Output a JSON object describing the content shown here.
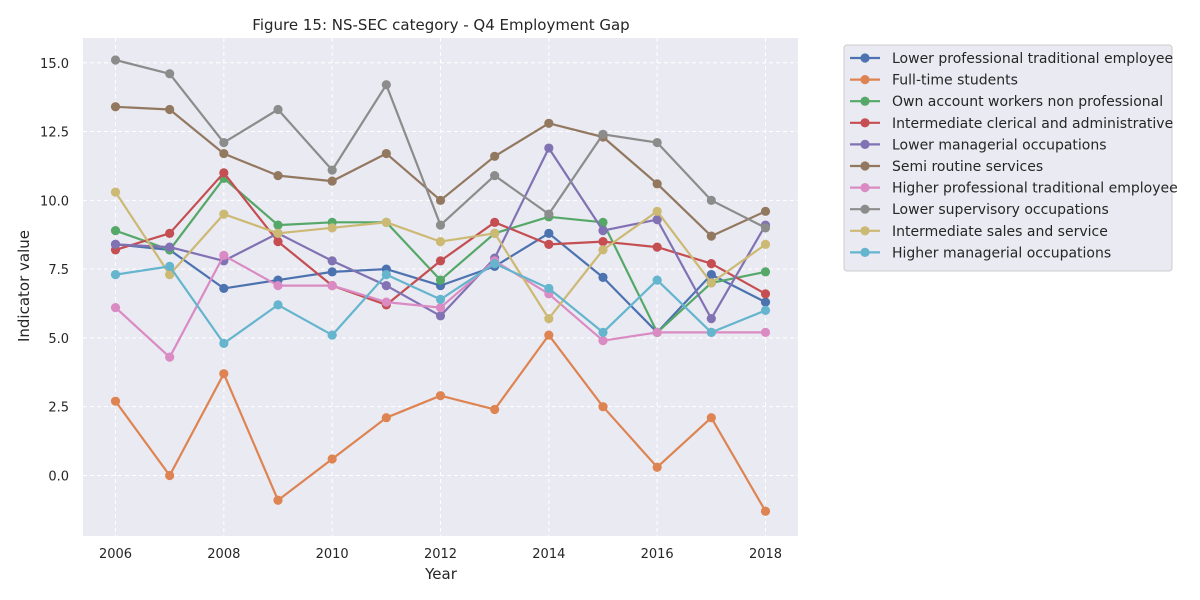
{
  "chart_data": {
    "type": "line",
    "title": "Figure 15: NS-SEC category - Q4 Employment Gap",
    "xlabel": "Year",
    "ylabel": "Indicator value",
    "x": [
      2006,
      2007,
      2008,
      2009,
      2010,
      2011,
      2012,
      2013,
      2014,
      2015,
      2016,
      2017,
      2018
    ],
    "xlim": [
      2005.4,
      2018.6
    ],
    "ylim": [
      -2.2,
      15.9
    ],
    "xticks": [
      2006,
      2008,
      2010,
      2012,
      2014,
      2016,
      2018
    ],
    "yticks": [
      "0.0",
      "2.5",
      "5.0",
      "7.5",
      "10.0",
      "12.5",
      "15.0"
    ],
    "grid": true,
    "legend_position": "outside-top-right",
    "series": [
      {
        "name": "Lower professional traditional employee",
        "color": "#4c72b0",
        "values": [
          8.4,
          8.2,
          6.8,
          7.1,
          7.4,
          7.5,
          6.9,
          7.6,
          8.8,
          7.2,
          5.2,
          7.3,
          6.3
        ]
      },
      {
        "name": "Full-time students",
        "color": "#dd8452",
        "values": [
          2.7,
          0.0,
          3.7,
          -0.9,
          0.6,
          2.1,
          2.9,
          2.4,
          5.1,
          2.5,
          0.3,
          2.1,
          -1.3
        ]
      },
      {
        "name": "Own account workers non professional",
        "color": "#55a868",
        "values": [
          8.9,
          8.2,
          10.8,
          9.1,
          9.2,
          9.2,
          7.1,
          8.8,
          9.4,
          9.2,
          5.2,
          7.0,
          7.4
        ]
      },
      {
        "name": "Intermediate clerical and administrative",
        "color": "#c44e52",
        "values": [
          8.2,
          8.8,
          11.0,
          8.5,
          6.9,
          6.2,
          7.8,
          9.2,
          8.4,
          8.5,
          8.3,
          7.7,
          6.6
        ]
      },
      {
        "name": "Lower managerial occupations",
        "color": "#8172b3",
        "values": [
          8.4,
          8.3,
          7.8,
          8.8,
          7.8,
          6.9,
          5.8,
          7.9,
          11.9,
          8.9,
          9.3,
          5.7,
          9.1
        ]
      },
      {
        "name": "Semi routine services",
        "color": "#937860",
        "values": [
          13.4,
          13.3,
          11.7,
          10.9,
          10.7,
          11.7,
          10.0,
          11.6,
          12.8,
          12.3,
          10.6,
          8.7,
          9.6
        ]
      },
      {
        "name": "Higher professional traditional employee",
        "color": "#da8bc3",
        "values": [
          6.1,
          4.3,
          8.0,
          6.9,
          6.9,
          6.3,
          6.1,
          7.8,
          6.6,
          4.9,
          5.2,
          5.2,
          5.2
        ]
      },
      {
        "name": "Lower supervisory occupations",
        "color": "#8c8c8c",
        "values": [
          15.1,
          14.6,
          12.1,
          13.3,
          11.1,
          14.2,
          9.1,
          10.9,
          9.5,
          12.4,
          12.1,
          10.0,
          9.0
        ]
      },
      {
        "name": "Intermediate sales and service",
        "color": "#ccb974",
        "values": [
          10.3,
          7.3,
          9.5,
          8.8,
          9.0,
          9.2,
          8.5,
          8.8,
          5.7,
          8.2,
          9.6,
          7.0,
          8.4
        ]
      },
      {
        "name": "Higher managerial occupations",
        "color": "#64b5cd",
        "values": [
          7.3,
          7.6,
          4.8,
          6.2,
          5.1,
          7.3,
          6.4,
          7.7,
          6.8,
          5.2,
          7.1,
          5.2,
          6.0
        ]
      }
    ]
  }
}
